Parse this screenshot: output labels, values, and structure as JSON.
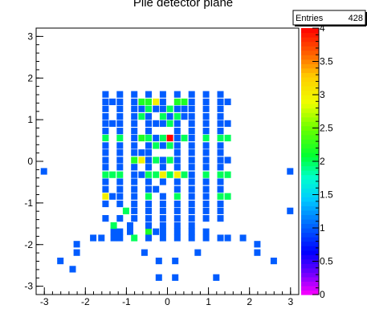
{
  "chart_data": {
    "type": "heatmap",
    "title": "Pile detector plane",
    "xlabel": "",
    "ylabel": "",
    "xlim": [
      -3.2,
      3.2
    ],
    "ylim": [
      -3.2,
      3.2
    ],
    "x_ticks": [
      "-3",
      "-2",
      "-1",
      "0",
      "1",
      "2",
      "3"
    ],
    "y_ticks": [
      "-3",
      "-2",
      "-1",
      "0",
      "1",
      "2",
      "3"
    ],
    "colorbar": {
      "min": 0,
      "max": 4,
      "ticks": [
        "0",
        "0.5",
        "1",
        "1.5",
        "2",
        "2.5",
        "3",
        "3.5",
        "4"
      ]
    },
    "stats": {
      "label": "Entries",
      "value": "428"
    },
    "bin_size": 0.175,
    "cells": [
      [
        -1.5,
        1.6,
        1
      ],
      [
        -1.15,
        1.6,
        1
      ],
      [
        -0.8,
        1.6,
        1
      ],
      [
        -0.45,
        1.6,
        1
      ],
      [
        -0.1,
        1.6,
        1
      ],
      [
        0.25,
        1.6,
        1
      ],
      [
        0.6,
        1.6,
        1
      ],
      [
        0.95,
        1.6,
        1
      ],
      [
        1.3,
        1.6,
        1
      ],
      [
        -1.5,
        1.42,
        1
      ],
      [
        -1.33,
        1.42,
        1
      ],
      [
        -1.15,
        1.42,
        1
      ],
      [
        -0.8,
        1.42,
        1
      ],
      [
        -0.62,
        1.42,
        2.2
      ],
      [
        -0.45,
        1.42,
        2.2
      ],
      [
        -0.27,
        1.42,
        3
      ],
      [
        -0.1,
        1.42,
        1
      ],
      [
        0.25,
        1.42,
        2.2
      ],
      [
        0.42,
        1.42,
        2.2
      ],
      [
        0.6,
        1.42,
        1
      ],
      [
        0.95,
        1.42,
        1
      ],
      [
        1.3,
        1.42,
        1
      ],
      [
        1.48,
        1.42,
        1
      ],
      [
        -1.5,
        1.25,
        1
      ],
      [
        -1.15,
        1.25,
        1
      ],
      [
        -0.8,
        1.25,
        1
      ],
      [
        -0.62,
        1.25,
        1
      ],
      [
        -0.45,
        1.25,
        2
      ],
      [
        -0.27,
        1.25,
        1
      ],
      [
        -0.1,
        1.25,
        1
      ],
      [
        0.07,
        1.25,
        2
      ],
      [
        0.25,
        1.25,
        1
      ],
      [
        0.42,
        1.25,
        1
      ],
      [
        0.6,
        1.25,
        1
      ],
      [
        0.95,
        1.25,
        1
      ],
      [
        1.3,
        1.25,
        1
      ],
      [
        -1.5,
        1.07,
        1
      ],
      [
        -1.15,
        1.07,
        1
      ],
      [
        -0.8,
        1.07,
        1
      ],
      [
        -0.62,
        1.07,
        2
      ],
      [
        -0.45,
        1.07,
        1
      ],
      [
        -0.1,
        1.07,
        2
      ],
      [
        0.07,
        1.07,
        1
      ],
      [
        0.25,
        1.07,
        2
      ],
      [
        0.42,
        1.07,
        1
      ],
      [
        0.6,
        1.07,
        1
      ],
      [
        0.95,
        1.07,
        1
      ],
      [
        1.3,
        1.07,
        1
      ],
      [
        -1.5,
        0.9,
        1
      ],
      [
        -1.33,
        0.9,
        1
      ],
      [
        -1.15,
        0.9,
        1
      ],
      [
        -0.8,
        0.9,
        1
      ],
      [
        -0.45,
        0.9,
        1
      ],
      [
        -0.27,
        0.9,
        1
      ],
      [
        -0.1,
        0.9,
        1
      ],
      [
        0.07,
        0.9,
        2
      ],
      [
        0.25,
        0.9,
        1
      ],
      [
        0.6,
        0.9,
        1
      ],
      [
        0.95,
        0.9,
        1
      ],
      [
        1.3,
        0.9,
        1
      ],
      [
        1.48,
        0.9,
        1
      ],
      [
        -1.5,
        0.72,
        1
      ],
      [
        -1.15,
        0.72,
        1
      ],
      [
        -0.8,
        0.72,
        1
      ],
      [
        -0.45,
        0.72,
        1
      ],
      [
        0.25,
        0.72,
        1
      ],
      [
        0.6,
        0.72,
        1
      ],
      [
        0.95,
        0.72,
        1
      ],
      [
        1.3,
        0.72,
        1
      ],
      [
        -1.5,
        0.55,
        2
      ],
      [
        -1.15,
        0.55,
        2
      ],
      [
        -0.8,
        0.55,
        1
      ],
      [
        -0.62,
        0.55,
        2.2
      ],
      [
        -0.45,
        0.55,
        2
      ],
      [
        -0.27,
        0.55,
        1
      ],
      [
        -0.1,
        0.55,
        2
      ],
      [
        0.07,
        0.55,
        4
      ],
      [
        0.25,
        0.55,
        1
      ],
      [
        0.42,
        0.55,
        2
      ],
      [
        0.6,
        0.55,
        1
      ],
      [
        0.95,
        0.55,
        2
      ],
      [
        1.3,
        0.55,
        2
      ],
      [
        1.48,
        0.55,
        2
      ],
      [
        -1.5,
        0.37,
        1
      ],
      [
        -1.15,
        0.37,
        1
      ],
      [
        -0.8,
        0.37,
        1
      ],
      [
        -0.45,
        0.37,
        1
      ],
      [
        -0.27,
        0.37,
        2
      ],
      [
        -0.1,
        0.37,
        1
      ],
      [
        0.07,
        0.37,
        2
      ],
      [
        0.25,
        0.37,
        1
      ],
      [
        0.6,
        0.37,
        1
      ],
      [
        0.95,
        0.37,
        1
      ],
      [
        1.3,
        0.37,
        1
      ],
      [
        -1.5,
        0.2,
        1
      ],
      [
        -1.15,
        0.2,
        1
      ],
      [
        -0.8,
        0.2,
        1
      ],
      [
        -0.62,
        0.2,
        1
      ],
      [
        -0.45,
        0.2,
        1
      ],
      [
        0.25,
        0.2,
        1
      ],
      [
        0.6,
        0.2,
        1
      ],
      [
        0.95,
        0.2,
        1
      ],
      [
        1.3,
        0.2,
        1
      ],
      [
        -1.5,
        0.02,
        1
      ],
      [
        -1.15,
        0.02,
        1
      ],
      [
        -0.8,
        0.02,
        2.2
      ],
      [
        -0.62,
        0.02,
        3
      ],
      [
        -0.45,
        0.02,
        1
      ],
      [
        -0.27,
        0.02,
        2
      ],
      [
        -0.1,
        0.02,
        1
      ],
      [
        0.07,
        0.02,
        2
      ],
      [
        0.25,
        0.02,
        1
      ],
      [
        0.6,
        0.02,
        1
      ],
      [
        0.95,
        0.02,
        1
      ],
      [
        1.3,
        0.02,
        1
      ],
      [
        1.48,
        0.02,
        1
      ],
      [
        -1.5,
        -0.15,
        1
      ],
      [
        -1.15,
        -0.15,
        1
      ],
      [
        -0.8,
        -0.15,
        1
      ],
      [
        -0.45,
        -0.15,
        1
      ],
      [
        -0.1,
        -0.15,
        1
      ],
      [
        0.25,
        -0.15,
        1
      ],
      [
        0.6,
        -0.15,
        1
      ],
      [
        0.95,
        -0.15,
        1
      ],
      [
        1.3,
        -0.15,
        1
      ],
      [
        -3.0,
        -0.25,
        1
      ],
      [
        3.0,
        -0.25,
        1
      ],
      [
        -1.5,
        -0.33,
        2
      ],
      [
        -1.33,
        -0.33,
        2
      ],
      [
        -1.15,
        -0.33,
        2
      ],
      [
        -0.8,
        -0.33,
        1
      ],
      [
        -0.62,
        -0.33,
        1
      ],
      [
        -0.45,
        -0.33,
        2
      ],
      [
        -0.27,
        -0.33,
        2
      ],
      [
        -0.1,
        -0.33,
        3
      ],
      [
        0.07,
        -0.33,
        2
      ],
      [
        0.25,
        -0.33,
        3
      ],
      [
        0.42,
        -0.33,
        2
      ],
      [
        0.6,
        -0.33,
        1
      ],
      [
        0.95,
        -0.33,
        2
      ],
      [
        1.3,
        -0.33,
        2
      ],
      [
        1.48,
        -0.33,
        2
      ],
      [
        -1.5,
        -0.5,
        1
      ],
      [
        -1.15,
        -0.5,
        1
      ],
      [
        -0.8,
        -0.5,
        1
      ],
      [
        -0.45,
        -0.5,
        1
      ],
      [
        -0.1,
        -0.5,
        1
      ],
      [
        0.25,
        -0.5,
        1
      ],
      [
        0.6,
        -0.5,
        1
      ],
      [
        0.95,
        -0.5,
        1
      ],
      [
        1.3,
        -0.5,
        1
      ],
      [
        -1.5,
        -0.68,
        1
      ],
      [
        -1.15,
        -0.68,
        1
      ],
      [
        -0.8,
        -0.68,
        1
      ],
      [
        -0.45,
        -0.68,
        1
      ],
      [
        -0.27,
        -0.68,
        1
      ],
      [
        0.25,
        -0.68,
        1
      ],
      [
        0.6,
        -0.68,
        1
      ],
      [
        0.95,
        -0.68,
        1
      ],
      [
        1.3,
        -0.68,
        1
      ],
      [
        -1.5,
        -0.85,
        3
      ],
      [
        -1.33,
        -0.85,
        1
      ],
      [
        -1.15,
        -0.85,
        1
      ],
      [
        -0.8,
        -0.85,
        1
      ],
      [
        -0.45,
        -0.85,
        2
      ],
      [
        -0.1,
        -0.85,
        1
      ],
      [
        0.25,
        -0.85,
        2
      ],
      [
        0.6,
        -0.85,
        1
      ],
      [
        0.95,
        -0.85,
        1
      ],
      [
        1.3,
        -0.85,
        2
      ],
      [
        1.48,
        -0.85,
        2
      ],
      [
        -1.5,
        -1.03,
        1
      ],
      [
        -1.15,
        -1.03,
        1
      ],
      [
        -0.8,
        -1.03,
        1
      ],
      [
        -0.45,
        -1.03,
        1
      ],
      [
        -0.1,
        -1.03,
        1
      ],
      [
        0.25,
        -1.03,
        1
      ],
      [
        0.6,
        -1.03,
        1
      ],
      [
        0.95,
        -1.03,
        1
      ],
      [
        1.3,
        -1.03,
        1
      ],
      [
        -1.0,
        -1.2,
        2
      ],
      [
        -0.8,
        -1.2,
        1
      ],
      [
        -0.45,
        -1.2,
        1
      ],
      [
        -0.1,
        -1.2,
        1
      ],
      [
        0.25,
        -1.2,
        1
      ],
      [
        0.6,
        -1.2,
        1
      ],
      [
        0.95,
        -1.2,
        1
      ],
      [
        1.3,
        -1.2,
        1
      ],
      [
        3.0,
        -1.2,
        1
      ],
      [
        -1.5,
        -1.38,
        1
      ],
      [
        -1.15,
        -1.38,
        1
      ],
      [
        -0.8,
        -1.38,
        1
      ],
      [
        -0.45,
        -1.38,
        1
      ],
      [
        -0.1,
        -1.38,
        1
      ],
      [
        0.25,
        -1.38,
        1
      ],
      [
        0.6,
        -1.38,
        1
      ],
      [
        0.95,
        -1.38,
        1
      ],
      [
        1.3,
        -1.38,
        1
      ],
      [
        -1.3,
        -1.7,
        1
      ],
      [
        -1.15,
        -1.7,
        1
      ],
      [
        -0.9,
        -1.7,
        1
      ],
      [
        -0.45,
        -1.7,
        2.2
      ],
      [
        -0.27,
        -1.7,
        1
      ],
      [
        -0.1,
        -1.7,
        1
      ],
      [
        0.25,
        -1.7,
        1
      ],
      [
        0.6,
        -1.7,
        1
      ],
      [
        0.95,
        -1.7,
        1
      ],
      [
        -1.3,
        -1.55,
        2
      ],
      [
        -0.9,
        -1.55,
        1
      ],
      [
        -0.45,
        -1.55,
        1
      ],
      [
        -0.1,
        -1.55,
        1
      ],
      [
        0.25,
        -1.55,
        1
      ],
      [
        0.6,
        -1.55,
        1
      ],
      [
        -1.8,
        -1.85,
        1
      ],
      [
        -1.6,
        -1.85,
        1
      ],
      [
        -1.3,
        -1.85,
        1
      ],
      [
        -1.15,
        -1.85,
        1
      ],
      [
        -0.8,
        -1.85,
        2
      ],
      [
        -0.45,
        -1.85,
        1
      ],
      [
        -0.1,
        -1.85,
        1
      ],
      [
        0.25,
        -1.85,
        1
      ],
      [
        0.6,
        -1.85,
        1
      ],
      [
        0.95,
        -1.85,
        1
      ],
      [
        1.3,
        -1.85,
        1
      ],
      [
        1.48,
        -1.85,
        1
      ],
      [
        1.85,
        -1.85,
        1
      ],
      [
        -2.2,
        -2.0,
        1
      ],
      [
        2.2,
        -2.0,
        1
      ],
      [
        -2.2,
        -2.2,
        1
      ],
      [
        -0.55,
        -2.2,
        1
      ],
      [
        0.75,
        -2.2,
        1
      ],
      [
        2.2,
        -2.2,
        1
      ],
      [
        -2.6,
        -2.4,
        1
      ],
      [
        -0.2,
        -2.4,
        1
      ],
      [
        0.2,
        -2.4,
        1
      ],
      [
        2.6,
        -2.4,
        1
      ],
      [
        -2.3,
        -2.6,
        1
      ],
      [
        -0.2,
        -2.8,
        1
      ],
      [
        0.2,
        -2.8,
        1
      ],
      [
        1.2,
        -2.8,
        1
      ]
    ]
  }
}
